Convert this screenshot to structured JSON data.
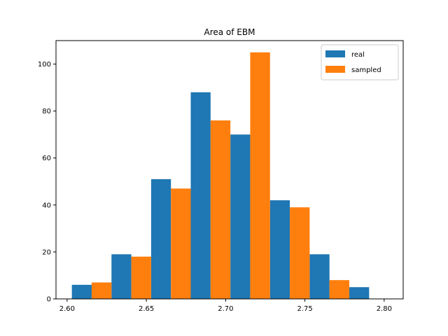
{
  "chart_data": {
    "type": "bar",
    "title": "Area of EBM",
    "xlabel": "",
    "ylabel": "",
    "xlim": [
      2.593,
      2.812
    ],
    "ylim": [
      0,
      110
    ],
    "x_ticks": [
      2.6,
      2.65,
      2.7,
      2.75,
      2.8
    ],
    "x_tick_labels": [
      "2.60",
      "2.65",
      "2.70",
      "2.75",
      "2.80"
    ],
    "y_ticks": [
      0,
      20,
      40,
      60,
      80,
      100
    ],
    "y_tick_labels": [
      "0",
      "20",
      "40",
      "60",
      "80",
      "100"
    ],
    "bin_edges": [
      2.603,
      2.628,
      2.653,
      2.678,
      2.703,
      2.728,
      2.753,
      2.778,
      2.803
    ],
    "categories": [
      "2.603–2.628",
      "2.628–2.653",
      "2.653–2.678",
      "2.678–2.703",
      "2.703–2.728",
      "2.728–2.753",
      "2.753–2.778",
      "2.778–2.803"
    ],
    "series": [
      {
        "name": "real",
        "color": "#1f77b4",
        "values": [
          6,
          19,
          51,
          88,
          70,
          42,
          19,
          5
        ]
      },
      {
        "name": "sampled",
        "color": "#ff7f0e",
        "values": [
          7,
          18,
          47,
          76,
          105,
          39,
          8,
          0
        ]
      }
    ],
    "grid": false,
    "legend_position": "upper right"
  }
}
